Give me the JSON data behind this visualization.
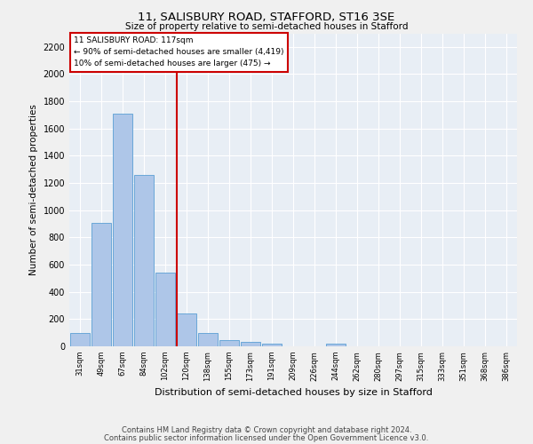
{
  "title": "11, SALISBURY ROAD, STAFFORD, ST16 3SE",
  "subtitle": "Size of property relative to semi-detached houses in Stafford",
  "xlabel": "Distribution of semi-detached houses by size in Stafford",
  "ylabel": "Number of semi-detached properties",
  "footnote1": "Contains HM Land Registry data © Crown copyright and database right 2024.",
  "footnote2": "Contains public sector information licensed under the Open Government Licence v3.0.",
  "annotation_line1": "11 SALISBURY ROAD: 117sqm",
  "annotation_line2": "← 90% of semi-detached houses are smaller (4,419)",
  "annotation_line3": "10% of semi-detached houses are larger (475) →",
  "bar_color": "#aec6e8",
  "bar_edge_color": "#5a9fd4",
  "vline_color": "#cc0000",
  "annotation_box_color": "#cc0000",
  "background_color": "#e8eef5",
  "fig_background_color": "#f0f0f0",
  "grid_color": "#ffffff",
  "categories": [
    "31sqm",
    "49sqm",
    "67sqm",
    "84sqm",
    "102sqm",
    "120sqm",
    "138sqm",
    "155sqm",
    "173sqm",
    "191sqm",
    "209sqm",
    "226sqm",
    "244sqm",
    "262sqm",
    "280sqm",
    "297sqm",
    "315sqm",
    "333sqm",
    "351sqm",
    "368sqm",
    "386sqm"
  ],
  "values": [
    95,
    910,
    1710,
    1260,
    540,
    240,
    100,
    45,
    30,
    20,
    0,
    0,
    20,
    0,
    0,
    0,
    0,
    0,
    0,
    0,
    0
  ],
  "vline_index": 5,
  "ylim": [
    0,
    2300
  ],
  "yticks": [
    0,
    200,
    400,
    600,
    800,
    1000,
    1200,
    1400,
    1600,
    1800,
    2000,
    2200
  ]
}
